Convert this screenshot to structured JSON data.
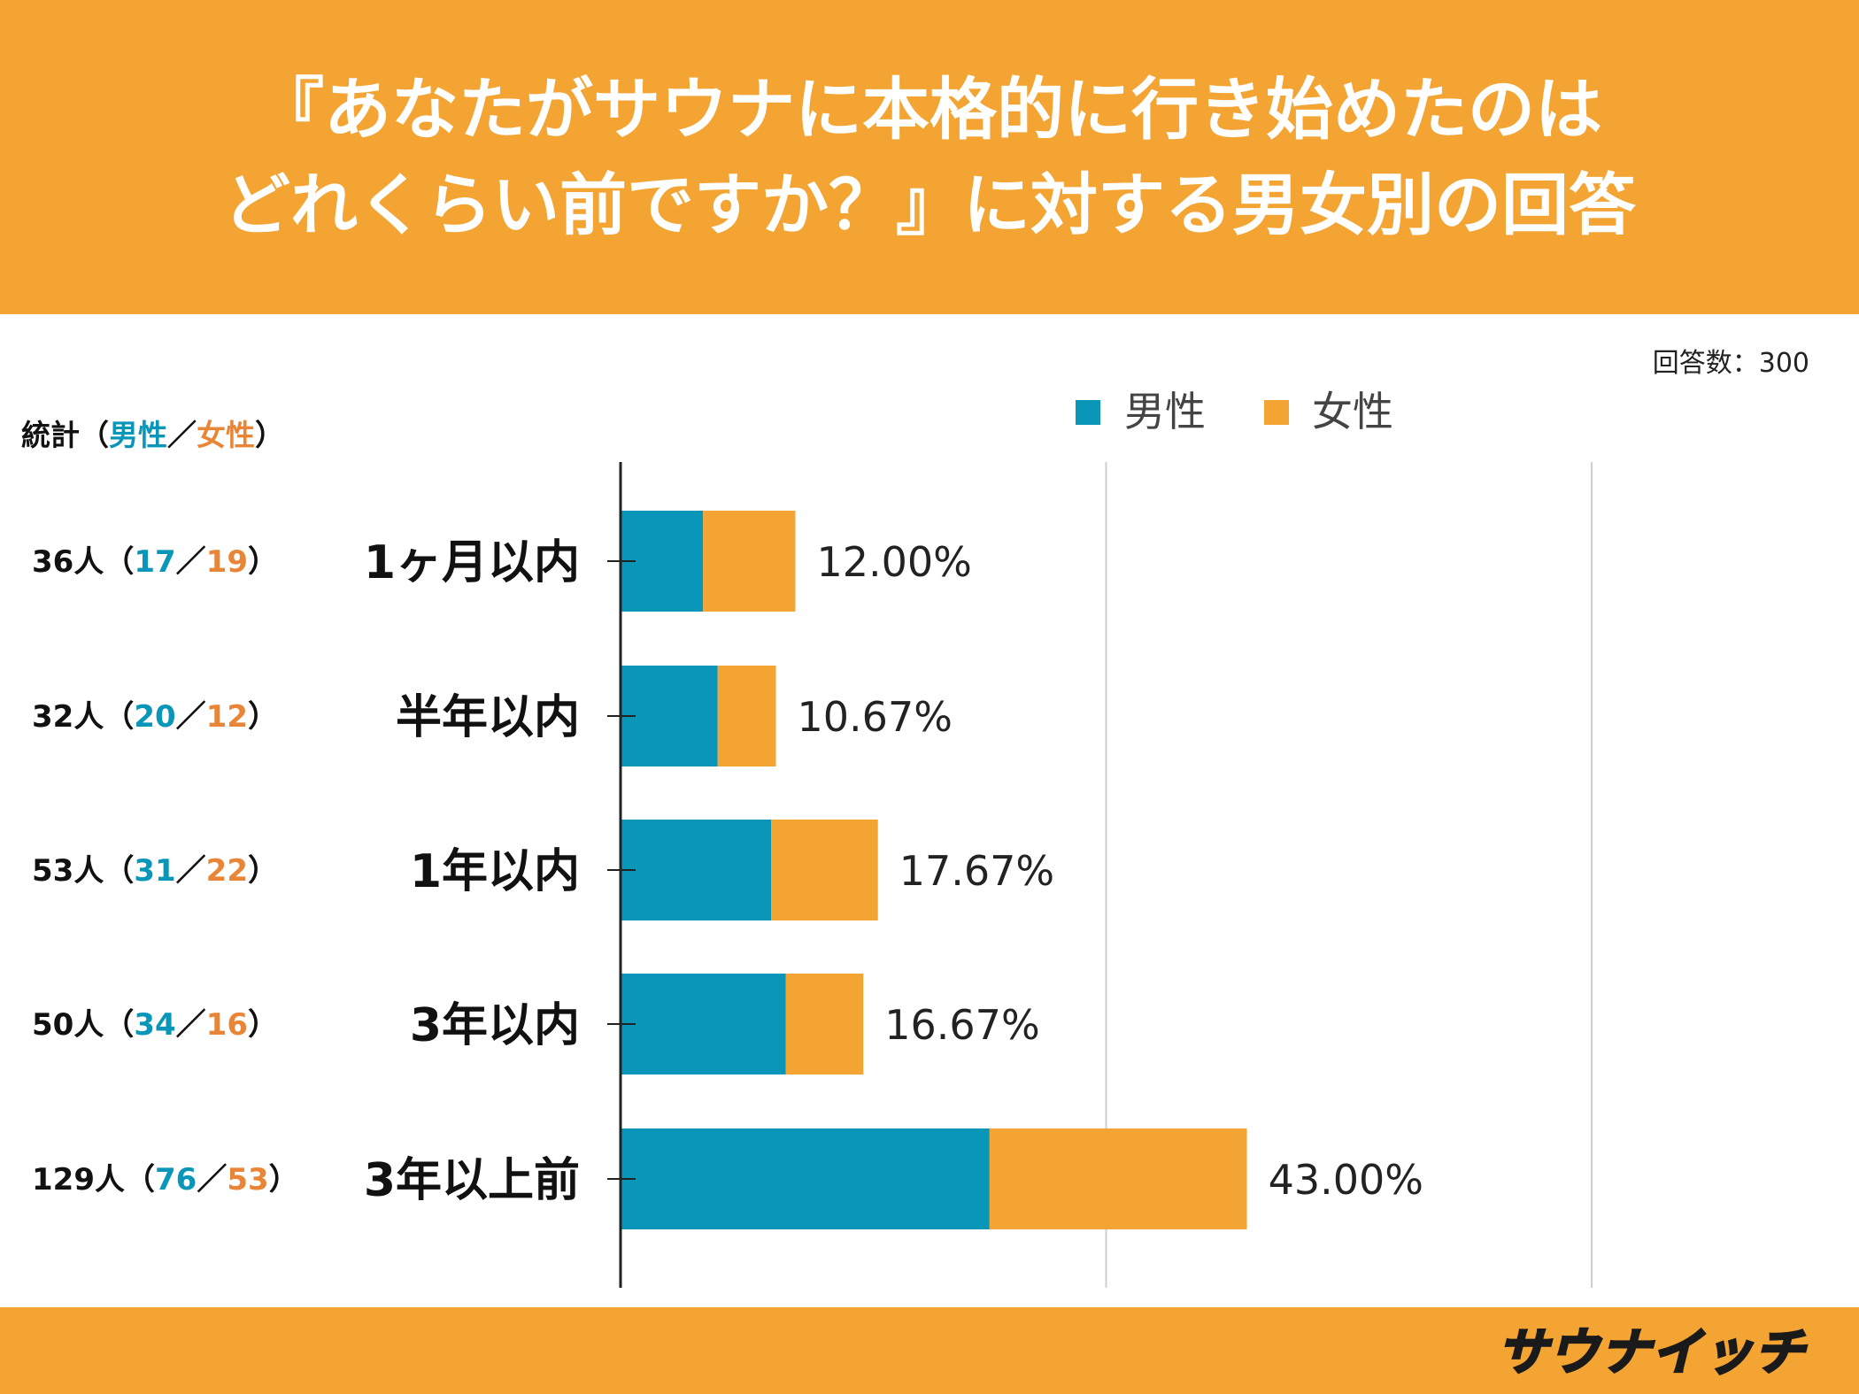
{
  "header": {
    "title_line1": "『あなたがサウナに本格的に行き始めたのは",
    "title_line2": "どれくらい前ですか？』に対する男女別の回答"
  },
  "respondents": "回答数：300",
  "stats_header": {
    "prefix": "統計（",
    "male": "男性",
    "sep": "／",
    "female": "女性",
    "suffix": "）"
  },
  "logo_text": "サウナイッチ",
  "colors": {
    "male": "#0a96b8",
    "female": "#f3a433",
    "header": "#f3a433"
  },
  "chart_data": {
    "type": "bar",
    "orientation": "horizontal",
    "stacked": true,
    "categories": [
      "1ヶ月以内",
      "半年以内",
      "1年以内",
      "3年以内",
      "3年以上前"
    ],
    "series": [
      {
        "name": "男性",
        "values": [
          17,
          20,
          31,
          34,
          76
        ]
      },
      {
        "name": "女性",
        "values": [
          19,
          12,
          22,
          16,
          53
        ]
      }
    ],
    "totals": [
      36,
      32,
      53,
      50,
      129
    ],
    "total_labels": [
      "36人",
      "32人",
      "53人",
      "50人",
      "129人"
    ],
    "percent_labels": [
      "12.00%",
      "10.67%",
      "17.67%",
      "16.67%",
      "43.00%"
    ],
    "xlim": [
      0,
      200
    ],
    "grid": true,
    "legend_position": "top"
  }
}
